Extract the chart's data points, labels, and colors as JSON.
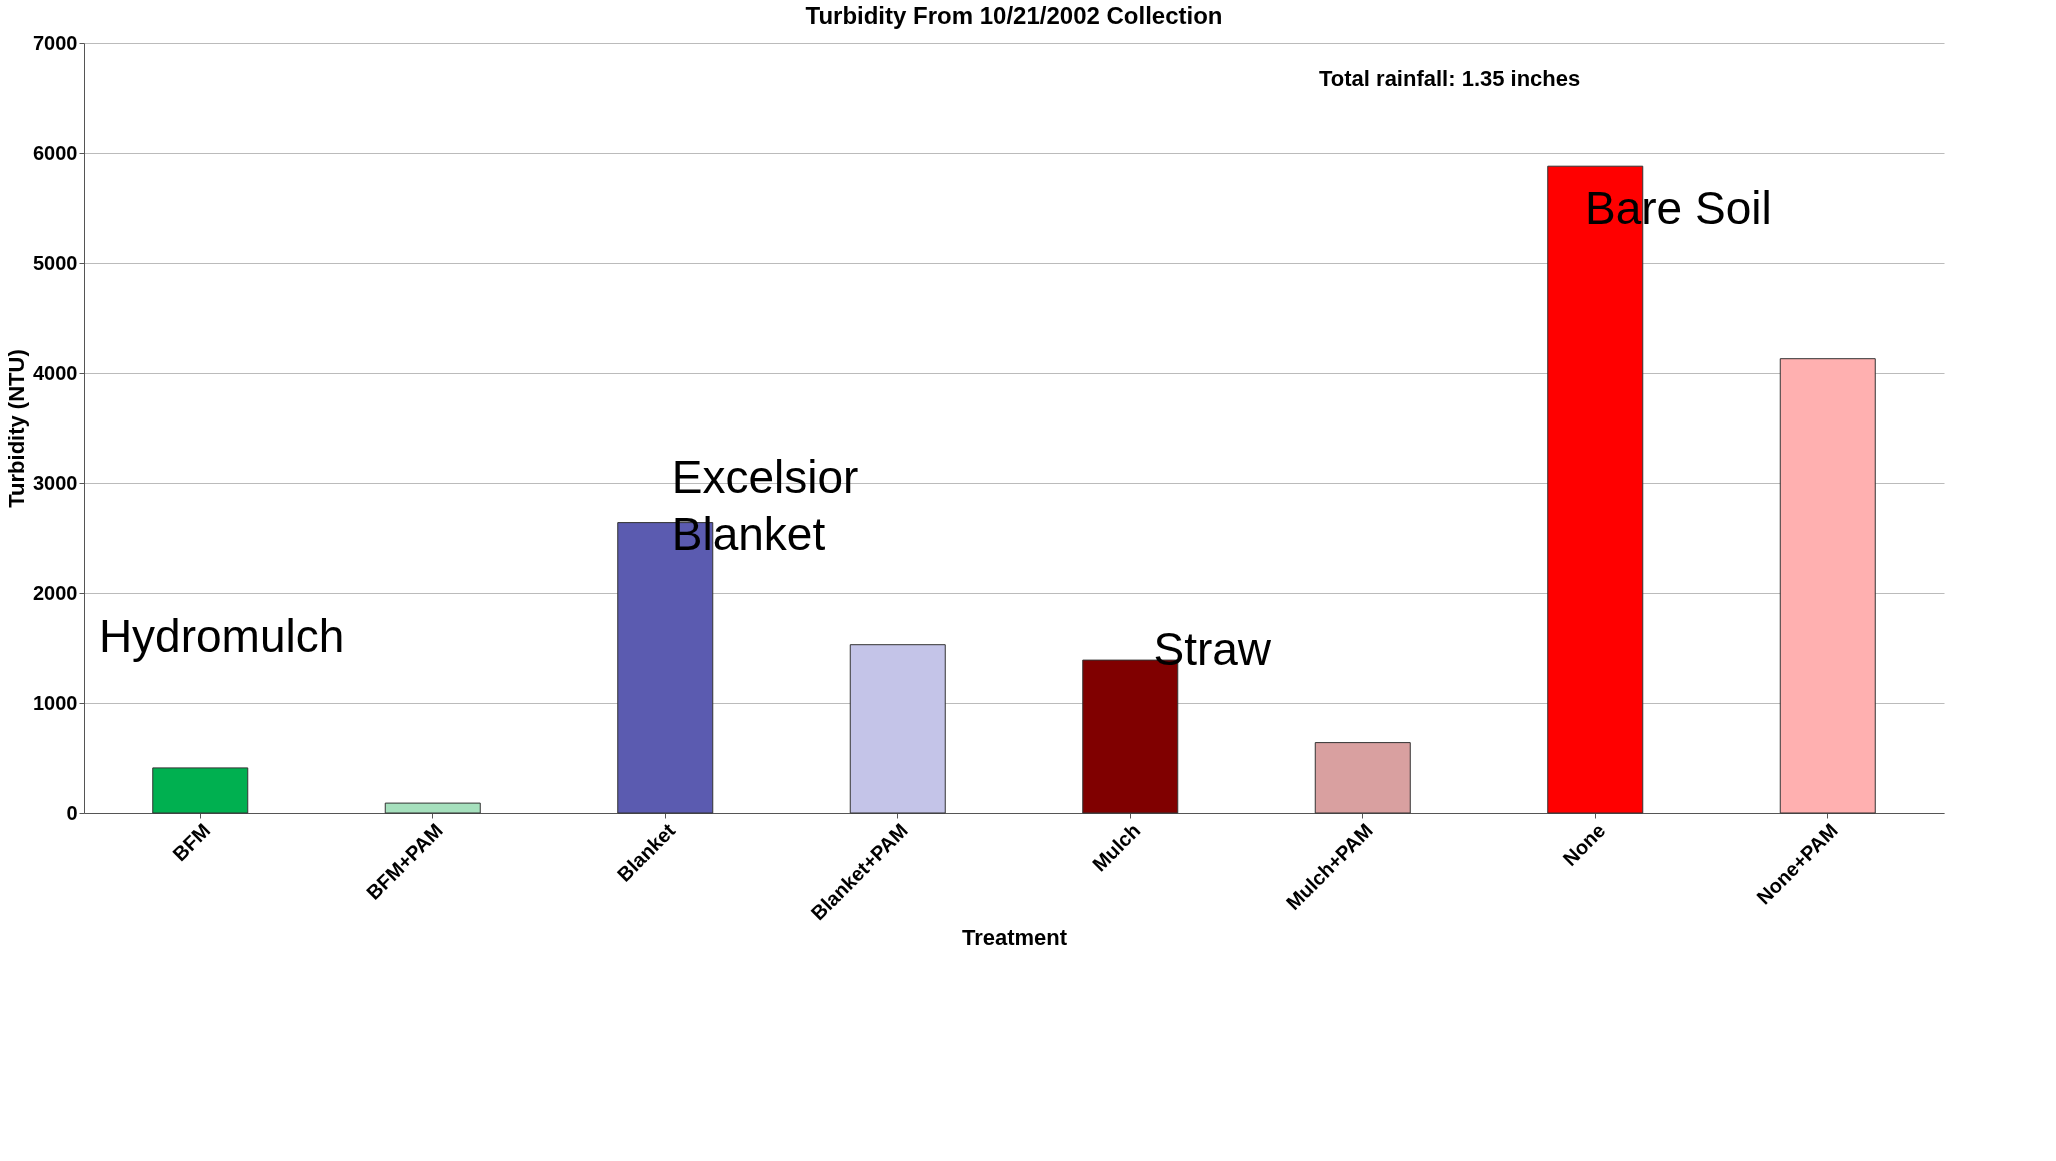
{
  "chart_data": {
    "type": "bar",
    "title": "Turbidity From 10/21/2002 Collection",
    "xlabel": "Treatment",
    "ylabel": "Turbidity (NTU)",
    "categories": [
      "BFM",
      "BFM+PAM",
      "Blanket",
      "Blanket+PAM",
      "Mulch",
      "Mulch+PAM",
      "None",
      "None+PAM"
    ],
    "values": [
      410,
      90,
      2640,
      1530,
      1390,
      640,
      5880,
      4130
    ],
    "colors": [
      "#00b050",
      "#a6e0bd",
      "#5b5bb0",
      "#c4c4e8",
      "#800000",
      "#d9a0a0",
      "#ff0000",
      "#ffb0b0"
    ],
    "ylim": [
      0,
      7000
    ],
    "yticks": [
      0,
      1000,
      2000,
      3000,
      4000,
      5000,
      6000,
      7000
    ],
    "grid": "y",
    "annotations": [
      "Hydromulch",
      "Excelsior Blanket",
      "Straw",
      "Bare Soil",
      "Total rainfall: 1.35 inches"
    ]
  }
}
